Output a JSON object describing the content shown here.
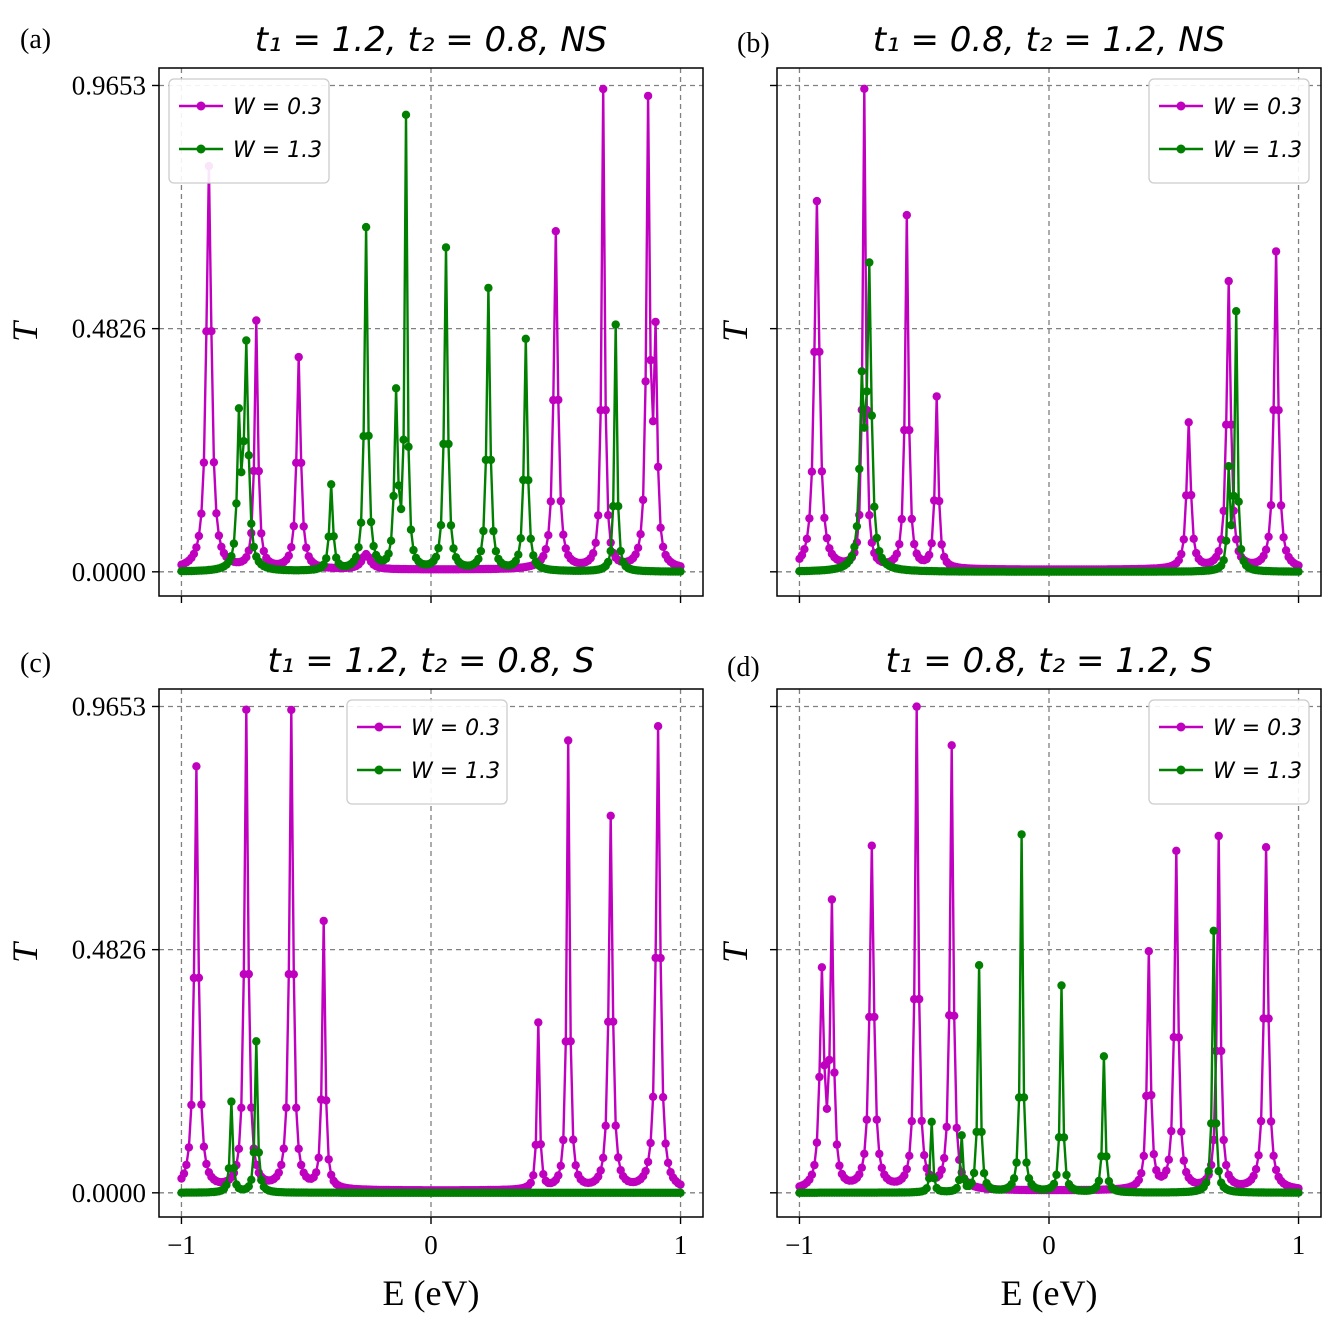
{
  "figure": {
    "xlabel": "E (eV)",
    "ylabel": "T",
    "xticks": [
      "−1",
      "0",
      "1"
    ],
    "yticks": [
      "0.0000",
      "0.4826",
      "0.9653"
    ]
  },
  "chart_data": [
    {
      "panel_label": "(a)",
      "title": "t₁ = 1.2, t₂ = 0.8, NS",
      "type": "line",
      "xlim": [
        -1.09,
        1.09
      ],
      "ylim": [
        -0.048,
        1.0
      ],
      "legend_position": "upper-left",
      "series": [
        {
          "name": "W = 0.3",
          "color": "#bf00bf",
          "peaks": [
            [
              -0.89,
              0.8,
              0.012
            ],
            [
              -0.7,
              0.49,
              0.008
            ],
            [
              -0.53,
              0.42,
              0.01
            ],
            [
              -0.26,
              0.03,
              0.02
            ],
            [
              0.0,
              0.0,
              0.3
            ],
            [
              0.5,
              0.67,
              0.01
            ],
            [
              0.69,
              0.95,
              0.007
            ],
            [
              0.87,
              0.91,
              0.008
            ],
            [
              0.9,
              0.43,
              0.008
            ]
          ]
        },
        {
          "name": "W = 1.3",
          "color": "#007f00",
          "peaks": [
            [
              -0.77,
              0.28,
              0.008
            ],
            [
              -0.74,
              0.44,
              0.01
            ],
            [
              -0.4,
              0.17,
              0.008
            ],
            [
              -0.26,
              0.68,
              0.008
            ],
            [
              -0.14,
              0.34,
              0.008
            ],
            [
              -0.1,
              0.89,
              0.006
            ],
            [
              0.06,
              0.64,
              0.008
            ],
            [
              0.23,
              0.56,
              0.008
            ],
            [
              0.38,
              0.46,
              0.008
            ],
            [
              0.74,
              0.49,
              0.006
            ]
          ]
        }
      ]
    },
    {
      "panel_label": "(b)",
      "title": "t₁ = 0.8, t₂ = 1.2, NS",
      "type": "line",
      "xlim": [
        -1.09,
        1.09
      ],
      "ylim": [
        -0.048,
        1.0
      ],
      "legend_position": "upper-right",
      "series": [
        {
          "name": "W = 0.3",
          "color": "#bf00bf",
          "peaks": [
            [
              -0.93,
              0.73,
              0.012
            ],
            [
              -0.74,
              0.95,
              0.007
            ],
            [
              -0.57,
              0.7,
              0.008
            ],
            [
              -0.45,
              0.34,
              0.008
            ],
            [
              0.56,
              0.29,
              0.01
            ],
            [
              0.72,
              0.57,
              0.01
            ],
            [
              0.91,
              0.63,
              0.01
            ]
          ]
        },
        {
          "name": "W = 1.3",
          "color": "#007f00",
          "peaks": [
            [
              -0.72,
              0.58,
              0.01
            ],
            [
              -0.75,
              0.34,
              0.01
            ],
            [
              0.72,
              0.19,
              0.006
            ],
            [
              0.75,
              0.51,
              0.006
            ]
          ]
        }
      ]
    },
    {
      "panel_label": "(c)",
      "title": "t₁ = 1.2, t₂ = 0.8, S",
      "type": "line",
      "xlim": [
        -1.09,
        1.09
      ],
      "ylim": [
        -0.048,
        1.0
      ],
      "legend_position": "upper-center",
      "series": [
        {
          "name": "W = 0.3",
          "color": "#bf00bf",
          "peaks": [
            [
              -0.94,
              0.84,
              0.01
            ],
            [
              -0.74,
              0.95,
              0.009
            ],
            [
              -0.56,
              0.95,
              0.009
            ],
            [
              -0.43,
              0.53,
              0.007
            ],
            [
              0.43,
              0.33,
              0.006
            ],
            [
              0.55,
              0.89,
              0.007
            ],
            [
              0.72,
              0.74,
              0.009
            ],
            [
              0.91,
              0.92,
              0.01
            ]
          ]
        },
        {
          "name": "W = 1.3",
          "color": "#007f00",
          "peaks": [
            [
              -0.8,
              0.18,
              0.006
            ],
            [
              -0.7,
              0.3,
              0.006
            ]
          ]
        }
      ]
    },
    {
      "panel_label": "(d)",
      "title": "t₁ = 0.8, t₂ = 1.2, S",
      "type": "line",
      "xlim": [
        -1.09,
        1.09
      ],
      "ylim": [
        -0.048,
        1.0
      ],
      "legend_position": "upper-right",
      "series": [
        {
          "name": "W = 0.3",
          "color": "#bf00bf",
          "peaks": [
            [
              -0.91,
              0.42,
              0.01
            ],
            [
              -0.87,
              0.55,
              0.008
            ],
            [
              -0.71,
              0.68,
              0.01
            ],
            [
              -0.53,
              0.96,
              0.008
            ],
            [
              -0.39,
              0.88,
              0.008
            ],
            [
              0.4,
              0.47,
              0.008
            ],
            [
              0.51,
              0.67,
              0.009
            ],
            [
              0.68,
              0.7,
              0.008
            ],
            [
              0.87,
              0.68,
              0.01
            ]
          ]
        },
        {
          "name": "W = 1.3",
          "color": "#007f00",
          "peaks": [
            [
              -0.47,
              0.14,
              0.005
            ],
            [
              -0.35,
              0.11,
              0.005
            ],
            [
              -0.28,
              0.45,
              0.006
            ],
            [
              -0.11,
              0.71,
              0.006
            ],
            [
              0.05,
              0.41,
              0.006
            ],
            [
              0.22,
              0.27,
              0.006
            ],
            [
              0.66,
              0.52,
              0.006
            ]
          ]
        }
      ]
    }
  ]
}
